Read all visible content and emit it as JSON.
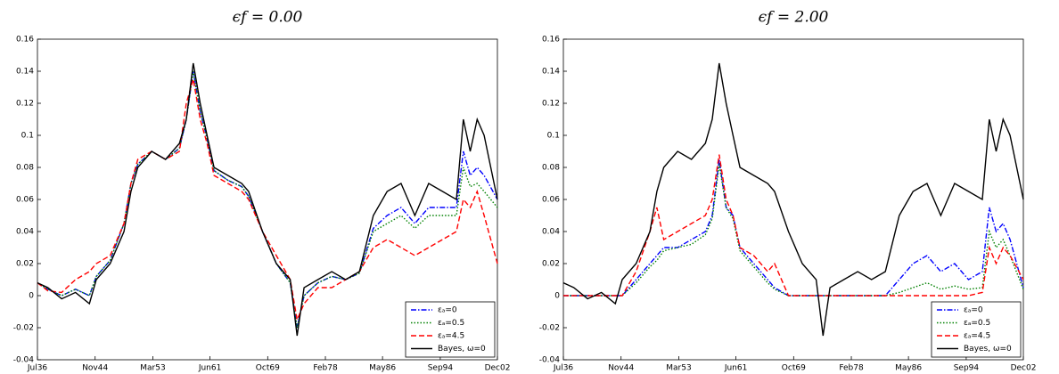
{
  "chart_data": [
    {
      "type": "line",
      "title": "ϵf = 0.00",
      "legend": "lower right",
      "x": [
        1936.5,
        1938,
        1940,
        1942,
        1944,
        1945,
        1947,
        1949,
        1950,
        1951,
        1953,
        1955,
        1957,
        1958,
        1959,
        1960,
        1961,
        1962,
        1964,
        1966,
        1967,
        1969,
        1971,
        1973,
        1974,
        1975,
        1977,
        1979,
        1981,
        1983,
        1985,
        1987,
        1989,
        1991,
        1993,
        1995,
        1997,
        1998,
        1999,
        2000,
        2001,
        2002.92
      ],
      "xlim": [
        1936.5,
        2002.92
      ],
      "xticks": [
        {
          "value": 1936.5,
          "label": "Jul36"
        },
        {
          "value": 1944.83,
          "label": "Nov44"
        },
        {
          "value": 1953.17,
          "label": "Mar53"
        },
        {
          "value": 1961.42,
          "label": "Jun61"
        },
        {
          "value": 1969.75,
          "label": "Oct69"
        },
        {
          "value": 1978.08,
          "label": "Feb78"
        },
        {
          "value": 1986.33,
          "label": "May86"
        },
        {
          "value": 1994.67,
          "label": "Sep94"
        },
        {
          "value": 2002.92,
          "label": "Dec02"
        }
      ],
      "ylim": [
        -0.04,
        0.16
      ],
      "yticks": [
        -0.04,
        -0.02,
        0,
        0.02,
        0.04,
        0.06,
        0.08,
        0.1,
        0.12,
        0.14,
        0.16
      ],
      "series": [
        {
          "name": "εₐ=0",
          "color": "#0000ff",
          "linestyle": "dashdot",
          "values": [
            0.008,
            0.004,
            0,
            0.004,
            0,
            0.012,
            0.022,
            0.045,
            0.07,
            0.082,
            0.09,
            0.085,
            0.092,
            0.11,
            0.14,
            0.115,
            0.098,
            0.078,
            0.072,
            0.068,
            0.062,
            0.04,
            0.02,
            0.008,
            -0.02,
            0.0,
            0.008,
            0.012,
            0.01,
            0.014,
            0.042,
            0.05,
            0.055,
            0.045,
            0.055,
            0.055,
            0.055,
            0.09,
            0.075,
            0.08,
            0.075,
            0.06
          ]
        },
        {
          "name": "εₐ=0.5",
          "color": "#008000",
          "linestyle": "dotted",
          "values": [
            0.008,
            0.004,
            0,
            0.004,
            0,
            0.012,
            0.022,
            0.045,
            0.07,
            0.082,
            0.09,
            0.085,
            0.092,
            0.11,
            0.14,
            0.115,
            0.098,
            0.078,
            0.072,
            0.068,
            0.062,
            0.04,
            0.02,
            0.008,
            -0.02,
            0.0,
            0.008,
            0.012,
            0.01,
            0.014,
            0.04,
            0.045,
            0.05,
            0.042,
            0.05,
            0.05,
            0.05,
            0.08,
            0.068,
            0.07,
            0.065,
            0.055
          ]
        },
        {
          "name": "εₐ=4.5",
          "color": "#ff0000",
          "linestyle": "dashed",
          "values": [
            0.008,
            0.003,
            0.002,
            0.01,
            0.015,
            0.02,
            0.025,
            0.045,
            0.07,
            0.085,
            0.09,
            0.085,
            0.09,
            0.12,
            0.135,
            0.11,
            0.095,
            0.075,
            0.07,
            0.065,
            0.06,
            0.04,
            0.025,
            0.01,
            -0.015,
            -0.005,
            0.005,
            0.005,
            0.01,
            0.015,
            0.03,
            0.035,
            0.03,
            0.025,
            0.03,
            0.035,
            0.04,
            0.06,
            0.055,
            0.065,
            0.05,
            0.02
          ]
        },
        {
          "name": "Bayes, ω=0",
          "color": "#000000",
          "linestyle": "solid",
          "values": [
            0.008,
            0.005,
            -0.002,
            0.002,
            -0.005,
            0.01,
            0.02,
            0.04,
            0.065,
            0.08,
            0.09,
            0.085,
            0.095,
            0.11,
            0.145,
            0.12,
            0.1,
            0.08,
            0.075,
            0.07,
            0.065,
            0.04,
            0.02,
            0.01,
            -0.025,
            0.005,
            0.01,
            0.015,
            0.01,
            0.015,
            0.05,
            0.065,
            0.07,
            0.05,
            0.07,
            0.065,
            0.06,
            0.11,
            0.09,
            0.11,
            0.1,
            0.06
          ]
        }
      ]
    },
    {
      "type": "line",
      "title": "ϵf = 2.00",
      "legend": "lower right",
      "x": [
        1936.5,
        1938,
        1940,
        1942,
        1944,
        1945,
        1947,
        1949,
        1950,
        1951,
        1953,
        1955,
        1957,
        1958,
        1959,
        1960,
        1961,
        1962,
        1964,
        1966,
        1967,
        1969,
        1971,
        1973,
        1974,
        1975,
        1977,
        1979,
        1981,
        1983,
        1985,
        1987,
        1989,
        1991,
        1993,
        1995,
        1997,
        1998,
        1999,
        2000,
        2001,
        2002.92
      ],
      "xlim": [
        1936.5,
        2002.92
      ],
      "xticks": [
        {
          "value": 1936.5,
          "label": "Jul36"
        },
        {
          "value": 1944.83,
          "label": "Nov44"
        },
        {
          "value": 1953.17,
          "label": "Mar53"
        },
        {
          "value": 1961.42,
          "label": "Jun61"
        },
        {
          "value": 1969.75,
          "label": "Oct69"
        },
        {
          "value": 1978.08,
          "label": "Feb78"
        },
        {
          "value": 1986.33,
          "label": "May86"
        },
        {
          "value": 1994.67,
          "label": "Sep94"
        },
        {
          "value": 2002.92,
          "label": "Dec02"
        }
      ],
      "ylim": [
        -0.04,
        0.16
      ],
      "yticks": [
        -0.04,
        -0.02,
        0,
        0.02,
        0.04,
        0.06,
        0.08,
        0.1,
        0.12,
        0.14,
        0.16
      ],
      "series": [
        {
          "name": "εₐ=0",
          "color": "#0000ff",
          "linestyle": "dashdot",
          "values": [
            0,
            0,
            0,
            0,
            0,
            0,
            0.01,
            0.02,
            0.025,
            0.03,
            0.03,
            0.035,
            0.04,
            0.05,
            0.085,
            0.055,
            0.05,
            0.03,
            0.02,
            0.01,
            0.005,
            0,
            0,
            0,
            0,
            0,
            0,
            0,
            0,
            0,
            0.01,
            0.02,
            0.025,
            0.015,
            0.02,
            0.01,
            0.015,
            0.055,
            0.04,
            0.045,
            0.035,
            0.005
          ]
        },
        {
          "name": "εₐ=0.5",
          "color": "#008000",
          "linestyle": "dotted",
          "values": [
            0,
            0,
            0,
            0,
            0,
            0,
            0.008,
            0.018,
            0.022,
            0.028,
            0.03,
            0.032,
            0.038,
            0.048,
            0.082,
            0.055,
            0.048,
            0.028,
            0.018,
            0.008,
            0.004,
            0,
            0,
            0,
            0,
            0,
            0,
            0,
            0,
            0,
            0.002,
            0.005,
            0.008,
            0.004,
            0.006,
            0.004,
            0.005,
            0.04,
            0.03,
            0.035,
            0.025,
            0.004
          ]
        },
        {
          "name": "εₐ=4.5",
          "color": "#ff0000",
          "linestyle": "dashed",
          "values": [
            0,
            0,
            0,
            0,
            0,
            0,
            0.015,
            0.04,
            0.055,
            0.035,
            0.04,
            0.045,
            0.05,
            0.06,
            0.088,
            0.06,
            0.05,
            0.03,
            0.025,
            0.015,
            0.02,
            0,
            0,
            0,
            0,
            0,
            0,
            0,
            0,
            0,
            0,
            0,
            0,
            0,
            0,
            0,
            0.002,
            0.03,
            0.02,
            0.03,
            0.025,
            0.01
          ]
        },
        {
          "name": "Bayes, ω=0",
          "color": "#000000",
          "linestyle": "solid",
          "values": [
            0.008,
            0.005,
            -0.002,
            0.002,
            -0.005,
            0.01,
            0.02,
            0.04,
            0.065,
            0.08,
            0.09,
            0.085,
            0.095,
            0.11,
            0.145,
            0.12,
            0.1,
            0.08,
            0.075,
            0.07,
            0.065,
            0.04,
            0.02,
            0.01,
            -0.025,
            0.005,
            0.01,
            0.015,
            0.01,
            0.015,
            0.05,
            0.065,
            0.07,
            0.05,
            0.07,
            0.065,
            0.06,
            0.11,
            0.09,
            0.11,
            0.1,
            0.06
          ]
        }
      ]
    }
  ]
}
